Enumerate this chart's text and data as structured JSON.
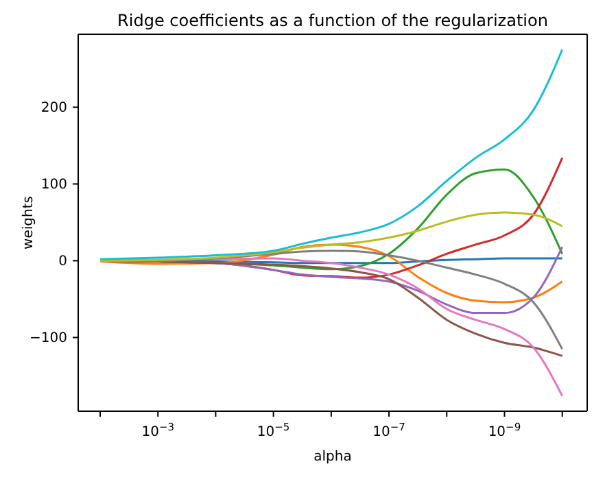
{
  "chart_data": {
    "type": "line",
    "title": "Ridge coefficients as a function of the regularization",
    "xlabel": "alpha",
    "ylabel": "weights",
    "x": [
      0.01,
      0.001,
      0.0001,
      1e-05,
      3.162e-06,
      1e-06,
      3.162e-07,
      1e-07,
      3.162e-08,
      1e-08,
      3.162e-09,
      1e-09,
      3.162e-10,
      1e-10
    ],
    "log": "x",
    "grid": false,
    "legend": false,
    "marker": "none",
    "line_style": "solid",
    "xlim": [
      0.024,
      3.7e-11
    ],
    "xticks": [
      {
        "value": 0.01,
        "label": null
      },
      {
        "value": 0.001,
        "label": "10$^{−3}$"
      },
      {
        "value": 0.0001,
        "label": null
      },
      {
        "value": 1e-05,
        "label": "10$^{−5}$"
      },
      {
        "value": 1e-06,
        "label": null
      },
      {
        "value": 1e-07,
        "label": "10$^{−7}$"
      },
      {
        "value": 1e-08,
        "label": null
      },
      {
        "value": 1e-09,
        "label": "10$^{−9}$"
      },
      {
        "value": 1e-10,
        "label": null
      }
    ],
    "ylim": [
      -196,
      295
    ],
    "yticks": [
      {
        "value": -100,
        "label": "−100"
      },
      0,
      100,
      200
    ],
    "series": [
      {
        "color": "#1f77b4",
        "values": [
          0,
          0,
          -1,
          -2,
          -3,
          -3,
          -3,
          -3,
          -1,
          1,
          2,
          3,
          3,
          3
        ]
      },
      {
        "color": "#ff7f0e",
        "values": [
          -1,
          -4,
          -3,
          8,
          18,
          21,
          18,
          6,
          -21,
          -42,
          -52,
          -54,
          -48,
          -27
        ]
      },
      {
        "color": "#2ca02c",
        "values": [
          0,
          -1,
          -3,
          -6,
          -9,
          -11,
          -7,
          9,
          42,
          86,
          114,
          119,
          83,
          9
        ]
      },
      {
        "color": "#d62728",
        "values": [
          0,
          -1,
          -3,
          -12,
          -19,
          -20,
          -22,
          -18,
          -6,
          9,
          21,
          33,
          60,
          134
        ]
      },
      {
        "color": "#9467bd",
        "values": [
          0,
          -1,
          -3,
          -12,
          -18,
          -21,
          -23,
          -27,
          -39,
          -57,
          -68,
          -68,
          -48,
          18
        ]
      },
      {
        "color": "#8c564b",
        "values": [
          0,
          -1,
          -3,
          -5,
          -7,
          -10,
          -15,
          -24,
          -48,
          -77,
          -95,
          -107,
          -113,
          -124
        ]
      },
      {
        "color": "#e377c2",
        "values": [
          0,
          1,
          2,
          3,
          0,
          -3,
          -9,
          -18,
          -36,
          -63,
          -77,
          -89,
          -113,
          -176
        ]
      },
      {
        "color": "#7f7f7f",
        "values": [
          0,
          0,
          3,
          9,
          12,
          13,
          12,
          7,
          0,
          -9,
          -18,
          -30,
          -54,
          -115
        ]
      },
      {
        "color": "#bcbd22",
        "values": [
          0,
          1,
          4,
          11,
          17,
          21,
          24,
          30,
          39,
          51,
          60,
          63,
          60,
          45
        ]
      },
      {
        "color": "#17becf",
        "values": [
          2,
          4,
          7,
          13,
          22,
          30,
          37,
          48,
          71,
          104,
          134,
          158,
          196,
          275
        ]
      }
    ]
  }
}
